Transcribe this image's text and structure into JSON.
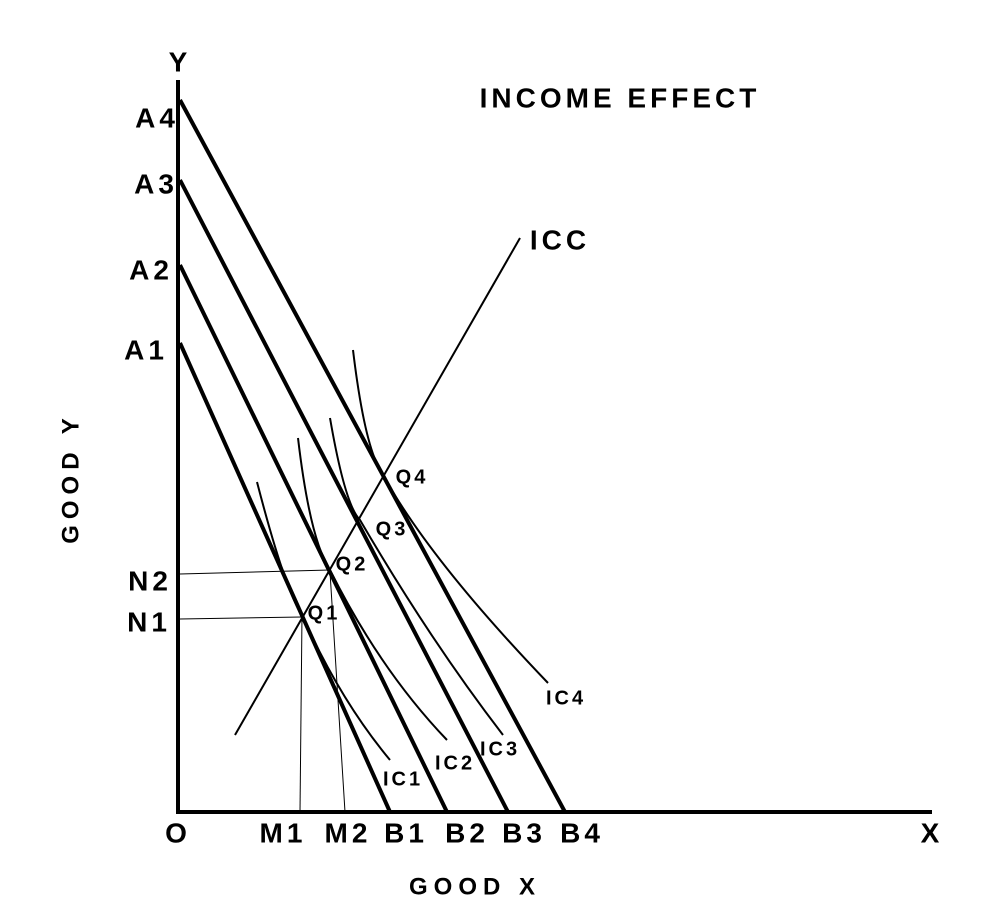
{
  "title": "INCOME EFFECT",
  "axes": {
    "y": "Y",
    "x": "X",
    "origin": "O",
    "y_title": "GOOD Y",
    "x_title": "GOOD X"
  },
  "y_labels": [
    "A4",
    "A3",
    "A2",
    "A1",
    "N2",
    "N1"
  ],
  "x_labels": [
    "M1",
    "M2",
    "B1",
    "B2",
    "B3",
    "B4"
  ],
  "icc": "ICC",
  "points": [
    "Q4",
    "Q3",
    "Q2",
    "Q1"
  ],
  "curves": [
    "IC4",
    "IC3",
    "IC2",
    "IC1"
  ]
}
